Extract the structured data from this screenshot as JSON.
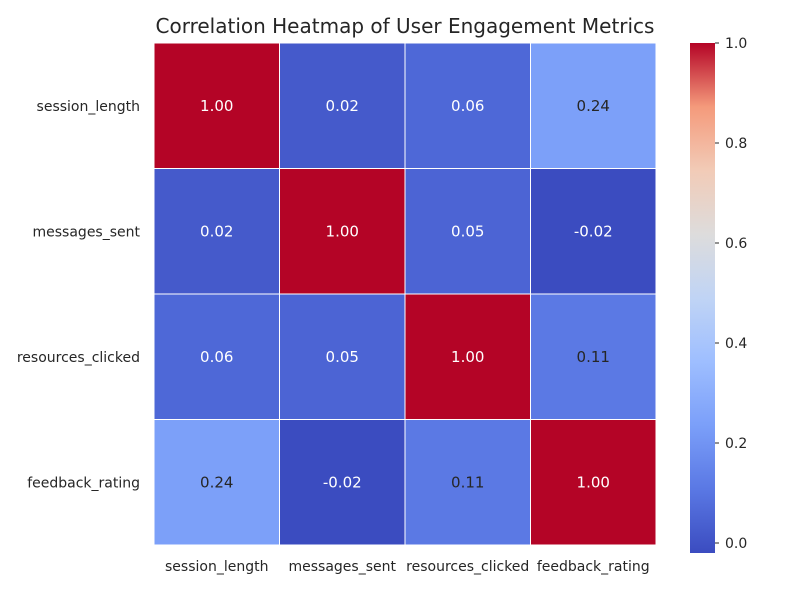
{
  "chart_data": {
    "type": "heatmap",
    "title": "Correlation Heatmap of User Engagement Metrics",
    "x_labels": [
      "session_length",
      "messages_sent",
      "resources_clicked",
      "feedback_rating"
    ],
    "y_labels": [
      "session_length",
      "messages_sent",
      "resources_clicked",
      "feedback_rating"
    ],
    "values": [
      [
        1.0,
        0.02,
        0.06,
        0.24
      ],
      [
        0.02,
        1.0,
        0.05,
        -0.02
      ],
      [
        0.06,
        0.05,
        1.0,
        0.11
      ],
      [
        0.24,
        -0.02,
        0.11,
        1.0
      ]
    ],
    "cell_labels": [
      [
        "1.00",
        "0.02",
        "0.06",
        "0.24"
      ],
      [
        "0.02",
        "1.00",
        "0.05",
        "-0.02"
      ],
      [
        "0.06",
        "0.05",
        "1.00",
        "0.11"
      ],
      [
        "0.24",
        "-0.02",
        "0.11",
        "1.00"
      ]
    ],
    "colorbar": {
      "colormap": "coolwarm",
      "vmin": -0.02,
      "vmax": 1.0,
      "ticks": [
        "0.0",
        "0.2",
        "0.4",
        "0.6",
        "0.8",
        "1.0"
      ]
    }
  }
}
